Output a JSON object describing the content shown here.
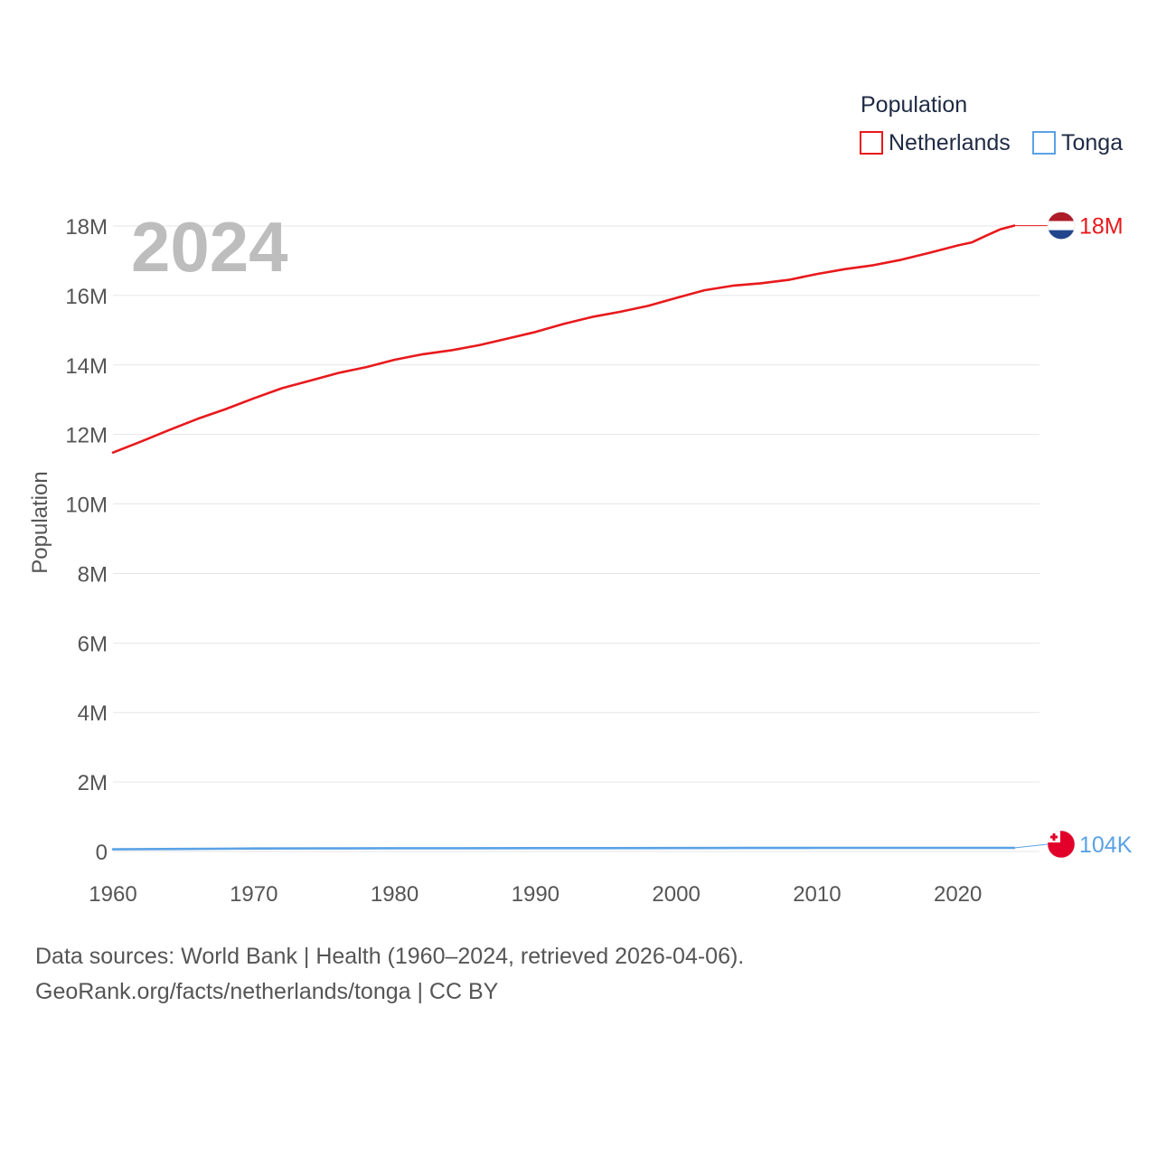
{
  "chart_data": {
    "type": "line",
    "legend_title": "Population",
    "legend_position": "top-right",
    "current_year_label": "2024",
    "ylabel": "Population",
    "xlabel": "",
    "xlim": [
      1960,
      2024
    ],
    "ylim": [
      0,
      18000000
    ],
    "x_ticks": [
      {
        "value": 1960,
        "label": "1960"
      },
      {
        "value": 1970,
        "label": "1970"
      },
      {
        "value": 1980,
        "label": "1980"
      },
      {
        "value": 1990,
        "label": "1990"
      },
      {
        "value": 2000,
        "label": "2000"
      },
      {
        "value": 2010,
        "label": "2010"
      },
      {
        "value": 2020,
        "label": "2020"
      }
    ],
    "y_ticks": [
      {
        "value": 0,
        "label": "0"
      },
      {
        "value": 2000000,
        "label": "2M"
      },
      {
        "value": 4000000,
        "label": "4M"
      },
      {
        "value": 6000000,
        "label": "6M"
      },
      {
        "value": 8000000,
        "label": "8M"
      },
      {
        "value": 10000000,
        "label": "10M"
      },
      {
        "value": 12000000,
        "label": "12M"
      },
      {
        "value": 14000000,
        "label": "14M"
      },
      {
        "value": 16000000,
        "label": "16M"
      },
      {
        "value": 18000000,
        "label": "18M"
      }
    ],
    "series": [
      {
        "name": "Netherlands",
        "color": "#e8191c",
        "end_label": "18M",
        "flag": "netherlands-flag-icon",
        "x": [
          1960,
          1962,
          1964,
          1966,
          1968,
          1970,
          1972,
          1974,
          1976,
          1978,
          1980,
          1982,
          1984,
          1986,
          1988,
          1990,
          1992,
          1994,
          1996,
          1998,
          2000,
          2002,
          2004,
          2006,
          2008,
          2010,
          2012,
          2014,
          2016,
          2018,
          2020,
          2021,
          2022,
          2023,
          2024
        ],
        "values": [
          11480000,
          11800000,
          12130000,
          12450000,
          12730000,
          13040000,
          13330000,
          13550000,
          13770000,
          13940000,
          14150000,
          14310000,
          14420000,
          14570000,
          14760000,
          14950000,
          15180000,
          15380000,
          15530000,
          15700000,
          15930000,
          16150000,
          16280000,
          16350000,
          16450000,
          16620000,
          16760000,
          16870000,
          17030000,
          17230000,
          17440000,
          17530000,
          17720000,
          17900000,
          18010000
        ]
      },
      {
        "name": "Tonga",
        "color": "#5aa2e6",
        "end_label": "104K",
        "flag": "tonga-flag-icon",
        "x": [
          1960,
          1965,
          1970,
          1975,
          1980,
          1985,
          1990,
          1995,
          2000,
          2005,
          2010,
          2015,
          2020,
          2024
        ],
        "values": [
          62000,
          73000,
          85000,
          89000,
          93000,
          94000,
          95000,
          97000,
          100000,
          102000,
          104000,
          104000,
          105000,
          104000
        ]
      }
    ]
  },
  "footer": {
    "source_line": "Data sources: World Bank | Health (1960–2024, retrieved 2026-04-06).",
    "credit_line": "GeoRank.org/facts/netherlands/tonga | CC BY"
  }
}
